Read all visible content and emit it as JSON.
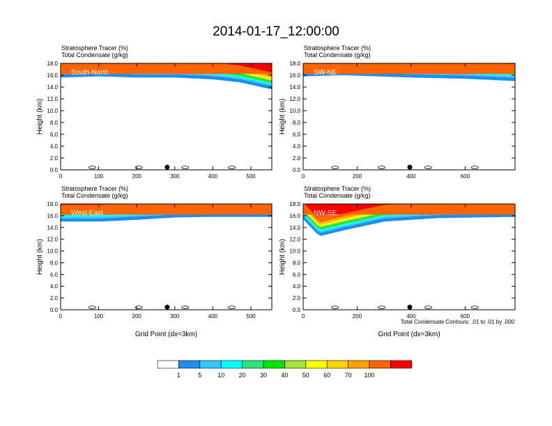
{
  "figure": {
    "title": "2014-01-17_12:00:00",
    "footnote": "Total Condensate Contours: .01 to .01 by .000"
  },
  "chart_data": [
    {
      "type": "heatmap",
      "subtitle_line1": "Stratosphere Tracer   (%)",
      "subtitle_line2": "Total Condensate   (g/kg)",
      "panel_label": "South-North",
      "ylabel": "Height (km)",
      "xlabel": "",
      "xlim": [
        0,
        555
      ],
      "ylim": [
        0,
        18
      ],
      "xticks": [
        0,
        100,
        200,
        300,
        400,
        500
      ],
      "yticks": [
        "0.0",
        "2.0",
        "4.0",
        "6.0",
        "8.0",
        "10.0",
        "12.0",
        "14.0",
        "16.0",
        "18.0"
      ],
      "marker_x": 280,
      "tracer_base_km": [
        [
          0,
          15.6
        ],
        [
          100,
          15.8
        ],
        [
          200,
          15.6
        ],
        [
          300,
          15.6
        ],
        [
          400,
          15.3
        ],
        [
          470,
          14.8
        ],
        [
          555,
          13.6
        ]
      ]
    },
    {
      "type": "heatmap",
      "subtitle_line1": "Stratosphere Tracer   (%)",
      "subtitle_line2": "Total Condensate   (g/kg)",
      "panel_label": "SW-NE",
      "ylabel": "Height (km)",
      "xlabel": "",
      "xlim": [
        0,
        785
      ],
      "ylim": [
        0,
        18
      ],
      "xticks": [
        0,
        200,
        400,
        600
      ],
      "yticks": [
        "0.0",
        "2.0",
        "4.0",
        "6.0",
        "8.0",
        "10.0",
        "12.0",
        "14.0",
        "16.0",
        "18.0"
      ],
      "marker_x": 395,
      "tracer_base_km": [
        [
          0,
          15.8
        ],
        [
          150,
          16.0
        ],
        [
          400,
          15.6
        ],
        [
          600,
          15.4
        ],
        [
          785,
          15.0
        ]
      ]
    },
    {
      "type": "heatmap",
      "subtitle_line1": "Stratosphere Tracer   (%)",
      "subtitle_line2": "Total Condensate   (g/kg)",
      "panel_label": "West-East",
      "ylabel": "Height (km)",
      "xlabel": "Grid Point (dx=3km)",
      "xlim": [
        0,
        555
      ],
      "ylim": [
        0,
        18
      ],
      "xticks": [
        0,
        100,
        200,
        300,
        400,
        500
      ],
      "yticks": [
        "0.0",
        "2.0",
        "4.0",
        "6.0",
        "8.0",
        "10.0",
        "12.0",
        "14.0",
        "16.0",
        "18.0"
      ],
      "marker_x": 280,
      "tracer_base_km": [
        [
          0,
          15.0
        ],
        [
          100,
          15.0
        ],
        [
          200,
          15.3
        ],
        [
          300,
          15.7
        ],
        [
          400,
          15.8
        ],
        [
          555,
          15.8
        ]
      ]
    },
    {
      "type": "heatmap",
      "subtitle_line1": "Stratosphere Tracer   (%)",
      "subtitle_line2": "Total Condensate   (g/kg)",
      "panel_label": "NW-SE",
      "ylabel": "Height (km)",
      "xlabel": "Grid Point (dx=3km)",
      "xlim": [
        0,
        785
      ],
      "ylim": [
        0,
        18
      ],
      "xticks": [
        0,
        200,
        400,
        600
      ],
      "yticks": [
        "0.0",
        "2.0",
        "4.0",
        "6.0",
        "8.0",
        "10.0",
        "12.0",
        "14.0",
        "16.0",
        "18.0"
      ],
      "marker_x": 395,
      "tracer_base_km": [
        [
          0,
          15.4
        ],
        [
          60,
          12.5
        ],
        [
          150,
          13.5
        ],
        [
          300,
          15.0
        ],
        [
          500,
          15.6
        ],
        [
          785,
          15.8
        ]
      ]
    }
  ],
  "colorbar": {
    "labels": [
      "1",
      "5",
      "10",
      "20",
      "30",
      "40",
      "50",
      "60",
      "70",
      "100"
    ],
    "colors": [
      "#ffffff",
      "#1e8cf0",
      "#32c8ff",
      "#00ffff",
      "#28e678",
      "#00e600",
      "#a0e632",
      "#ffff00",
      "#ffd200",
      "#ffa000",
      "#ff6400",
      "#fa0000"
    ]
  }
}
